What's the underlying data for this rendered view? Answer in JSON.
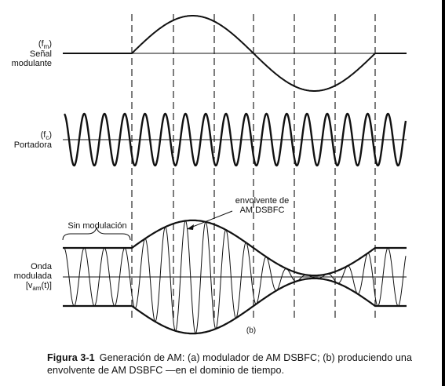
{
  "panels": {
    "modulating": {
      "label_line1": "(f",
      "label_sub": "m",
      "label_close": ")",
      "label_line2": "Señal",
      "label_line3": "modulante"
    },
    "carrier": {
      "label_line1": "(f",
      "label_sub": "c",
      "label_close": ")",
      "label_line2": "Portadora"
    },
    "modulated": {
      "label_line1": "Onda",
      "label_line2": "modulada",
      "label_line3_pre": "[v",
      "label_line3_sub": "am",
      "label_line3_post": "(t)]"
    }
  },
  "annotations": {
    "no_modulation": "Sin modulación",
    "envelope_line1": "envolvente de",
    "envelope_line2": "AM DSBFC",
    "panel_tag": "(b)"
  },
  "caption": {
    "figure": "Figura 3-1",
    "text": "Generación de AM: (a) modulador de AM DSBFC; (b) produciendo una envolvente de AM DSBFC —en el dominio de tiempo."
  },
  "colors": {
    "ink": "#111111",
    "background": "#ffffff"
  }
}
